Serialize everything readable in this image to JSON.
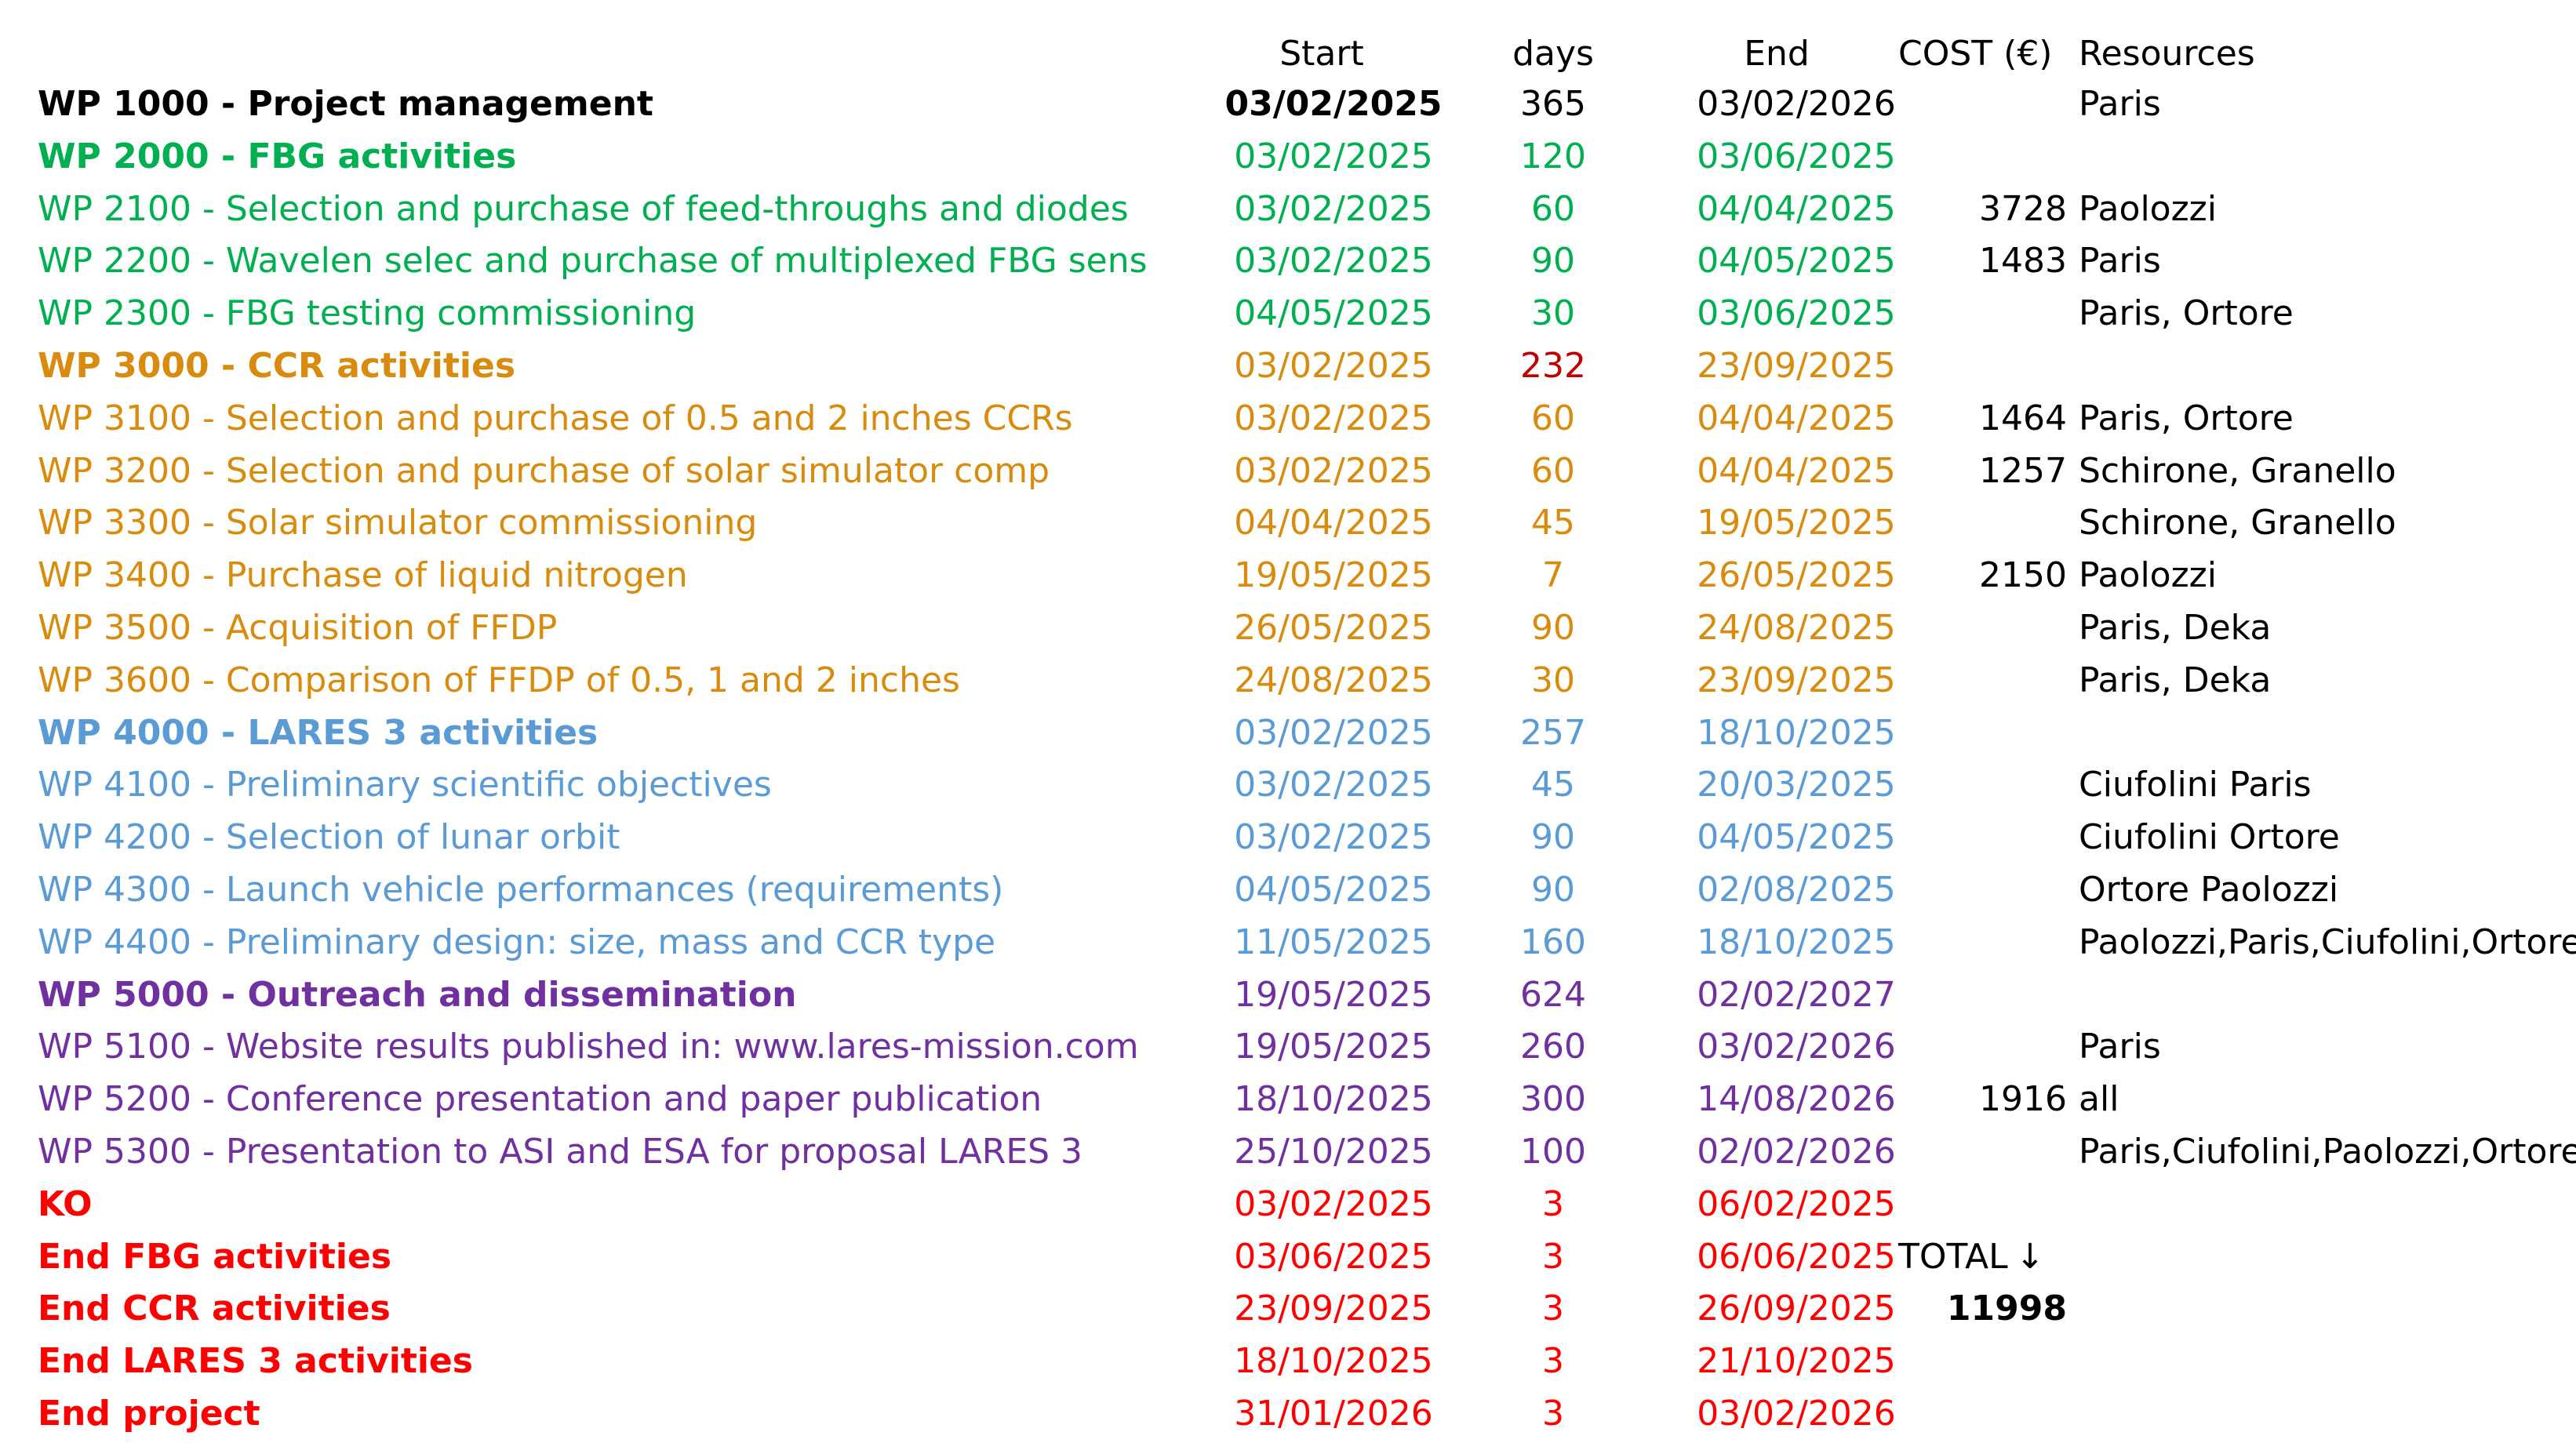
{
  "headers": {
    "start": "Start",
    "days": "days",
    "end": "End",
    "cost": "COST (€)",
    "resources": "Resources"
  },
  "colors": {
    "project_management": "#000000",
    "fbg": "#00b050",
    "ccr": "#d98b0e",
    "lares": "#5b9bd5",
    "outreach": "#7030a0",
    "milestones": "#ff0000",
    "days_highlight": "#c00000"
  },
  "rows": [
    {
      "name": "WP 1000 - Project management",
      "start": "03/02/2025",
      "days": "365",
      "end": "03/02/2026",
      "cost": "",
      "resources": "Paris"
    },
    {
      "name": "WP 2000 - FBG activities",
      "start": "03/02/2025",
      "days": "120",
      "end": "03/06/2025",
      "cost": "",
      "resources": ""
    },
    {
      "name": "WP 2100 - Selection and purchase of feed-throughs and diodes",
      "start": "03/02/2025",
      "days": "60",
      "end": "04/04/2025",
      "cost": "3728",
      "resources": "Paolozzi"
    },
    {
      "name": "WP 2200 - Wavelen selec and purchase of multiplexed FBG sens",
      "start": "03/02/2025",
      "days": "90",
      "end": "04/05/2025",
      "cost": "1483",
      "resources": "Paris"
    },
    {
      "name": "WP 2300 - FBG testing commissioning",
      "start": "04/05/2025",
      "days": "30",
      "end": "03/06/2025",
      "cost": "",
      "resources": "Paris, Ortore"
    },
    {
      "name": "WP 3000 - CCR activities",
      "start": "03/02/2025",
      "days": "232",
      "end": "23/09/2025",
      "cost": "",
      "resources": ""
    },
    {
      "name": "WP 3100 - Selection and purchase of 0.5 and 2 inches CCRs",
      "start": "03/02/2025",
      "days": "60",
      "end": "04/04/2025",
      "cost": "1464",
      "resources": "Paris, Ortore"
    },
    {
      "name": "WP 3200 - Selection and purchase of solar simulator comp",
      "start": "03/02/2025",
      "days": "60",
      "end": "04/04/2025",
      "cost": "1257",
      "resources": "Schirone, Granello"
    },
    {
      "name": "WP 3300 - Solar simulator commissioning",
      "start": "04/04/2025",
      "days": "45",
      "end": "19/05/2025",
      "cost": "",
      "resources": "Schirone, Granello"
    },
    {
      "name": "WP 3400 - Purchase of liquid nitrogen",
      "start": "19/05/2025",
      "days": "7",
      "end": "26/05/2025",
      "cost": "2150",
      "resources": "Paolozzi"
    },
    {
      "name": "WP 3500 - Acquisition of FFDP",
      "start": "26/05/2025",
      "days": "90",
      "end": "24/08/2025",
      "cost": "",
      "resources": "Paris, Deka"
    },
    {
      "name": "WP 3600 - Comparison of FFDP of 0.5, 1 and 2 inches",
      "start": "24/08/2025",
      "days": "30",
      "end": "23/09/2025",
      "cost": "",
      "resources": "Paris, Deka"
    },
    {
      "name": "WP 4000 - LARES 3 activities",
      "start": "03/02/2025",
      "days": "257",
      "end": "18/10/2025",
      "cost": "",
      "resources": ""
    },
    {
      "name": "WP 4100 - Preliminary scientific objectives",
      "start": "03/02/2025",
      "days": "45",
      "end": "20/03/2025",
      "cost": "",
      "resources": "Ciufolini Paris"
    },
    {
      "name": "WP 4200 - Selection of lunar orbit",
      "start": "03/02/2025",
      "days": "90",
      "end": "04/05/2025",
      "cost": "",
      "resources": "Ciufolini Ortore"
    },
    {
      "name": "WP 4300 - Launch vehicle performances (requirements)",
      "start": "04/05/2025",
      "days": "90",
      "end": "02/08/2025",
      "cost": "",
      "resources": "Ortore Paolozzi"
    },
    {
      "name": "WP 4400 - Preliminary design: size, mass and CCR type",
      "start": "11/05/2025",
      "days": "160",
      "end": "18/10/2025",
      "cost": "",
      "resources": "Paolozzi,Paris,Ciufolini,Ortore"
    },
    {
      "name": "WP 5000 - Outreach and dissemination",
      "start": "19/05/2025",
      "days": "624",
      "end": "02/02/2027",
      "cost": "",
      "resources": ""
    },
    {
      "name": "WP 5100 - Website results published in: www.lares-mission.com",
      "start": "19/05/2025",
      "days": "260",
      "end": "03/02/2026",
      "cost": "",
      "resources": "Paris"
    },
    {
      "name": "WP 5200 - Conference presentation and paper publication",
      "start": "18/10/2025",
      "days": "300",
      "end": "14/08/2026",
      "cost": "1916",
      "resources": "all"
    },
    {
      "name": "WP 5300 - Presentation to ASI and ESA for proposal LARES 3",
      "start": "25/10/2025",
      "days": "100",
      "end": "02/02/2026",
      "cost": "",
      "resources": "Paris,Ciufolini,Paolozzi,Ortore"
    },
    {
      "name": "KO",
      "start": "03/02/2025",
      "days": "3",
      "end": "06/02/2025",
      "cost": "",
      "resources": ""
    },
    {
      "name": "End FBG activities",
      "start": "03/06/2025",
      "days": "3",
      "end": "06/06/2025",
      "cost": "",
      "resources": ""
    },
    {
      "name": "End CCR activities",
      "start": "23/09/2025",
      "days": "3",
      "end": "26/09/2025",
      "cost": "",
      "resources": ""
    },
    {
      "name": "End LARES 3 activities",
      "start": "18/10/2025",
      "days": "3",
      "end": "21/10/2025",
      "cost": "",
      "resources": ""
    },
    {
      "name": "End project",
      "start": "31/01/2026",
      "days": "3",
      "end": "03/02/2026",
      "cost": "",
      "resources": ""
    }
  ],
  "total": {
    "label": "TOTAL",
    "arrow": "↓",
    "value": "11998"
  }
}
